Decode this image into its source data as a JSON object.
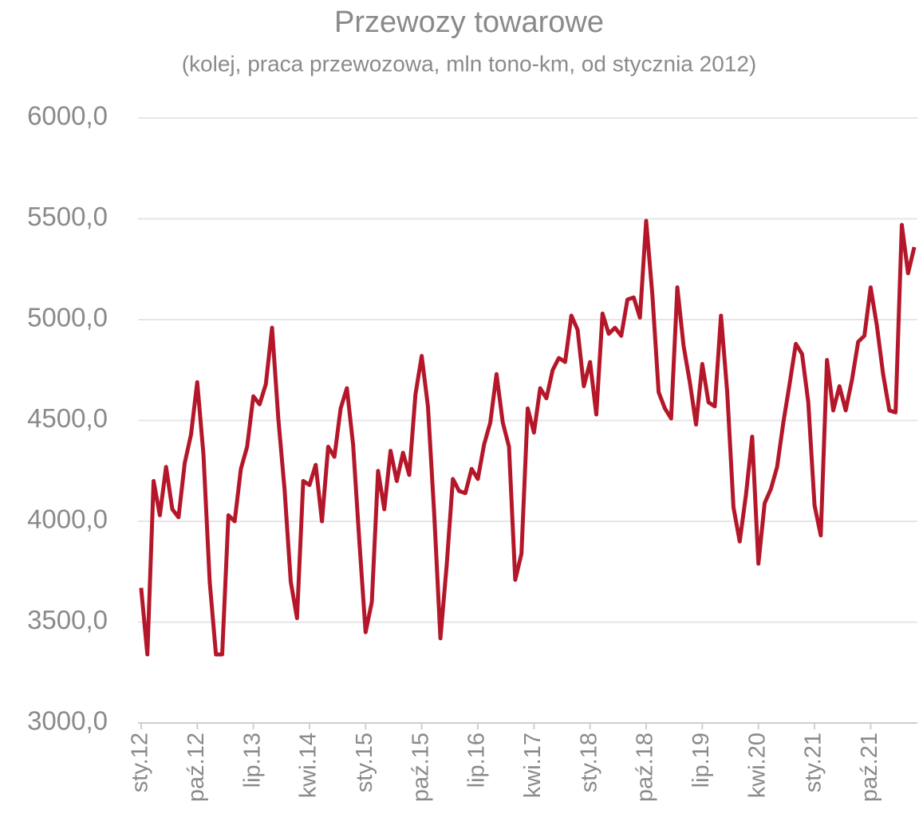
{
  "chart_data": {
    "type": "line",
    "title": "Przewozy towarowe",
    "subtitle": "(kolej, praca przewozowa, mln tono-km, od stycznia 2012)",
    "categories": [
      "sty.12",
      null,
      null,
      null,
      null,
      null,
      null,
      null,
      null,
      "paź.12",
      null,
      null,
      null,
      null,
      null,
      null,
      null,
      null,
      "lip.13",
      null,
      null,
      null,
      null,
      null,
      null,
      null,
      null,
      "kwi.14",
      null,
      null,
      null,
      null,
      null,
      null,
      null,
      null,
      "sty.15",
      null,
      null,
      null,
      null,
      null,
      null,
      null,
      null,
      "paź.15",
      null,
      null,
      null,
      null,
      null,
      null,
      null,
      null,
      "lip.16",
      null,
      null,
      null,
      null,
      null,
      null,
      null,
      null,
      "kwi.17",
      null,
      null,
      null,
      null,
      null,
      null,
      null,
      null,
      "sty.18",
      null,
      null,
      null,
      null,
      null,
      null,
      null,
      null,
      "paź.18",
      null,
      null,
      null,
      null,
      null,
      null,
      null,
      null,
      "lip.19",
      null,
      null,
      null,
      null,
      null,
      null,
      null,
      null,
      "kwi.20",
      null,
      null,
      null,
      null,
      null,
      null,
      null,
      null,
      "sty.21",
      null,
      null,
      null,
      null,
      null,
      null,
      null,
      null,
      "paź.21",
      null,
      null,
      null,
      null,
      null,
      null,
      null
    ],
    "series": [
      {
        "name": "Przewozy towarowe",
        "color": "#b5172a",
        "values": [
          3670,
          3340,
          4200,
          4030,
          4270,
          4060,
          4020,
          4290,
          4430,
          4690,
          4330,
          3700,
          3340,
          3340,
          4030,
          4000,
          4260,
          4370,
          4620,
          4580,
          4680,
          4960,
          4510,
          4160,
          3700,
          3520,
          4200,
          4180,
          4280,
          4000,
          4370,
          4320,
          4560,
          4660,
          4380,
          3900,
          3450,
          3600,
          4250,
          4060,
          4350,
          4200,
          4340,
          4230,
          4630,
          4820,
          4570,
          4040,
          3420,
          3780,
          4210,
          4150,
          4140,
          4260,
          4210,
          4380,
          4490,
          4730,
          4490,
          4370,
          3710,
          3840,
          4560,
          4440,
          4660,
          4610,
          4750,
          4810,
          4790,
          5020,
          4950,
          4670,
          4790,
          4530,
          5030,
          4930,
          4960,
          4920,
          5100,
          5110,
          5010,
          5490,
          5120,
          4640,
          4560,
          4510,
          5160,
          4870,
          4690,
          4480,
          4780,
          4590,
          4570,
          5020,
          4640,
          4070,
          3900,
          4130,
          4420,
          3790,
          4090,
          4160,
          4270,
          4490,
          4680,
          4880,
          4830,
          4590,
          4080,
          3930,
          4800,
          4550,
          4670,
          4550,
          4700,
          4890,
          4920,
          5160,
          4970,
          4730,
          4550,
          4540,
          5470,
          5230,
          5360
        ]
      }
    ],
    "ylim": [
      3000,
      6000
    ],
    "yticks": [
      {
        "value": 3000,
        "label": "3000,0"
      },
      {
        "value": 3500,
        "label": "3500,0"
      },
      {
        "value": 4000,
        "label": "4000,0"
      },
      {
        "value": 4500,
        "label": "4500,0"
      },
      {
        "value": 5000,
        "label": "5000,0"
      },
      {
        "value": 5500,
        "label": "5500,0"
      },
      {
        "value": 6000,
        "label": "6000,0"
      }
    ],
    "grid": true
  }
}
